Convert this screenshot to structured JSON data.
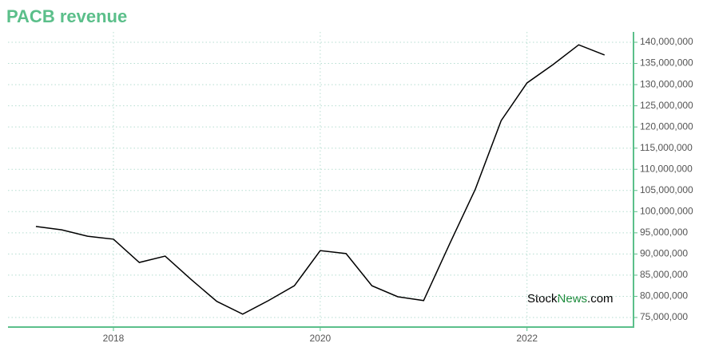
{
  "chart_data": {
    "type": "line",
    "title": "PACB revenue",
    "x": [
      2017.25,
      2017.5,
      2017.75,
      2018,
      2018.25,
      2018.5,
      2018.75,
      2019,
      2019.25,
      2019.5,
      2019.75,
      2020,
      2020.25,
      2020.5,
      2020.75,
      2021,
      2021.25,
      2021.5,
      2021.75,
      2022,
      2022.25,
      2022.5,
      2022.75
    ],
    "series": [
      {
        "color": "#000000",
        "values": [
          96500000,
          95700000,
          94200000,
          93500000,
          88000000,
          89500000,
          84000000,
          78800000,
          75800000,
          79000000,
          82500000,
          90800000,
          90100000,
          82500000,
          79900000,
          79000000,
          92300000,
          105300000,
          121500000,
          130400000,
          134700000,
          139400000,
          137000000
        ]
      }
    ],
    "xlim": [
      2016.98,
      2023.03
    ],
    "xticks": [
      2018,
      2020,
      2022
    ],
    "ylim": [
      72740000,
      142450000
    ],
    "yticks": [
      {
        "value": 75000000,
        "label": "75,000,000"
      },
      {
        "value": 80000000,
        "label": "80,000,000"
      },
      {
        "value": 85000000,
        "label": "85,000,000"
      },
      {
        "value": 90000000,
        "label": "90,000,000"
      },
      {
        "value": 95000000,
        "label": "95,000,000"
      },
      {
        "value": 100000000,
        "label": "100,000,000"
      },
      {
        "value": 105000000,
        "label": "105,000,000"
      },
      {
        "value": 110000000,
        "label": "110,000,000"
      },
      {
        "value": 115000000,
        "label": "115,000,000"
      },
      {
        "value": 120000000,
        "label": "120,000,000"
      },
      {
        "value": 125000000,
        "label": "125,000,000"
      },
      {
        "value": 130000000,
        "label": "130,000,000"
      },
      {
        "value": 135000000,
        "label": "135,000,000"
      },
      {
        "value": 140000000,
        "label": "140,000,000"
      }
    ],
    "grid": true,
    "watermark": [
      "Stock",
      "News",
      ".com"
    ]
  }
}
